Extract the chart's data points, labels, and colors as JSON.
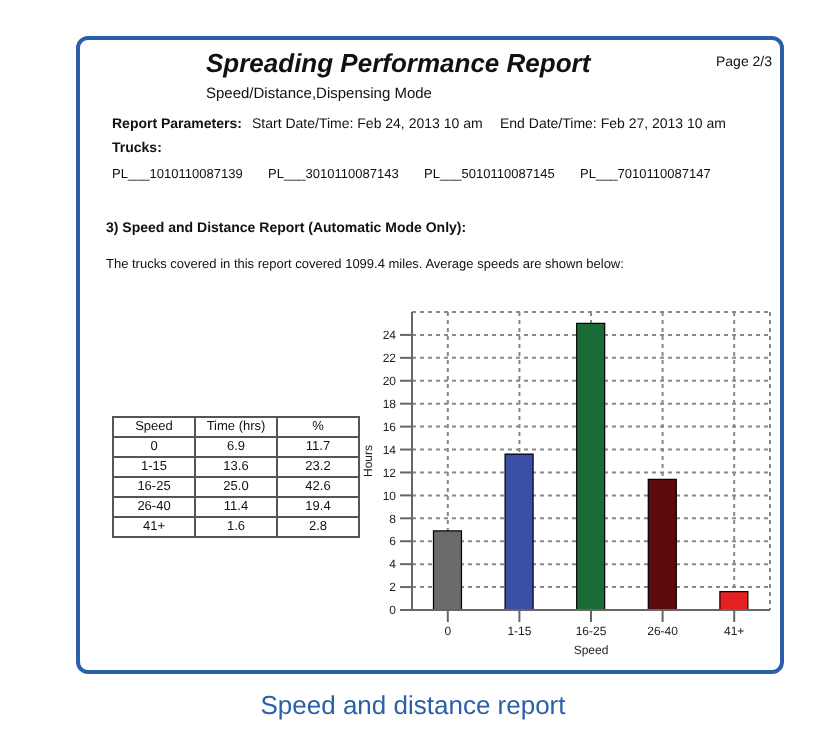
{
  "chart_data": [
    {
      "type": "other",
      "data_labels": true,
      "title": "Spreading Performance Report",
      "subtitle": "Speed/Distance,Dispensing Mode",
      "xlabel": "Speed",
      "categories": [
        "0",
        "1-15",
        "16-25",
        "26-40",
        "41+"
      ],
      "series": [
        {
          "name": "%",
          "values": [
            11.7,
            23.2,
            42.6,
            19.4,
            2.8
          ]
        }
      ],
      "annotations": [
        "Page 2/3",
        "Report Parameters:",
        "Start Date/Time: Feb 24, 2013 10 am",
        "End Date/Time: Feb 27, 2013 10 am",
        "Trucks:",
        "PL___1010110087139",
        "PL___3010110087143",
        "PL___5010110087145",
        "PL___7010110087147",
        "3) Speed and Distance Report (Automatic Mode Only):",
        "The trucks covered in this report covered 1099.4 miles.  Average speeds are shown below:",
        "Speed and distance report",
        "Time (hrs)"
      ]
    },
    {
      "type": "bar",
      "categories": [
        "0",
        "1-15",
        "16-25",
        "26-40",
        "41+"
      ],
      "values": [
        6.9,
        13.6,
        25.0,
        11.4,
        1.6
      ],
      "value_labels": [
        "6.9",
        "13.6",
        "25.0",
        "11.4",
        "1.6"
      ],
      "colors": [
        "#6b6b6b",
        "#3a4fa8",
        "#1a6b35",
        "#5c0a0a",
        "#e52020"
      ],
      "xlabel": "Speed",
      "ylabel": "Hours",
      "ylim": [
        0,
        26
      ],
      "yticks": [
        0,
        2,
        4,
        6,
        8,
        10,
        12,
        14,
        16,
        18,
        20,
        22,
        24
      ],
      "grid": true
    }
  ]
}
